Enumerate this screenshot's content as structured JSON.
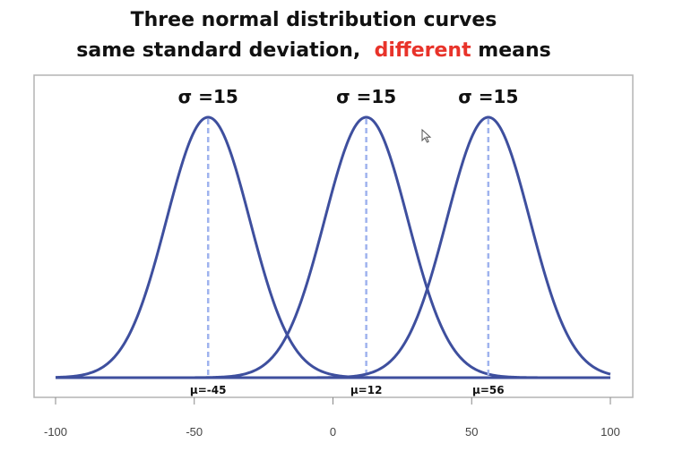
{
  "title": {
    "line1": "Three normal distribution curves",
    "line2_prefix": "same standard deviation,",
    "line2_highlight": "different",
    "line2_suffix": "means"
  },
  "colors": {
    "curve": "#3e4f9e",
    "mean_line": "#9fb3ee",
    "frame": "#b4b4b4",
    "highlight": "#e8332a",
    "text": "#111111",
    "tick_text": "#444444"
  },
  "chart_data": {
    "type": "line",
    "x_ticks": [
      -100,
      -50,
      0,
      50,
      100
    ],
    "x_tick_labels": [
      "-100",
      "-50",
      "0",
      "50",
      "100"
    ],
    "xlim": [
      -100,
      100
    ],
    "series": [
      {
        "mean": -45,
        "sd": 15,
        "sigma_label": "σ =15",
        "mu_label": "μ=-45"
      },
      {
        "mean": 12,
        "sd": 15,
        "sigma_label": "σ =15",
        "mu_label": "μ=12"
      },
      {
        "mean": 56,
        "sd": 15,
        "sigma_label": "σ =15",
        "mu_label": "μ=56"
      }
    ],
    "grid": false
  }
}
